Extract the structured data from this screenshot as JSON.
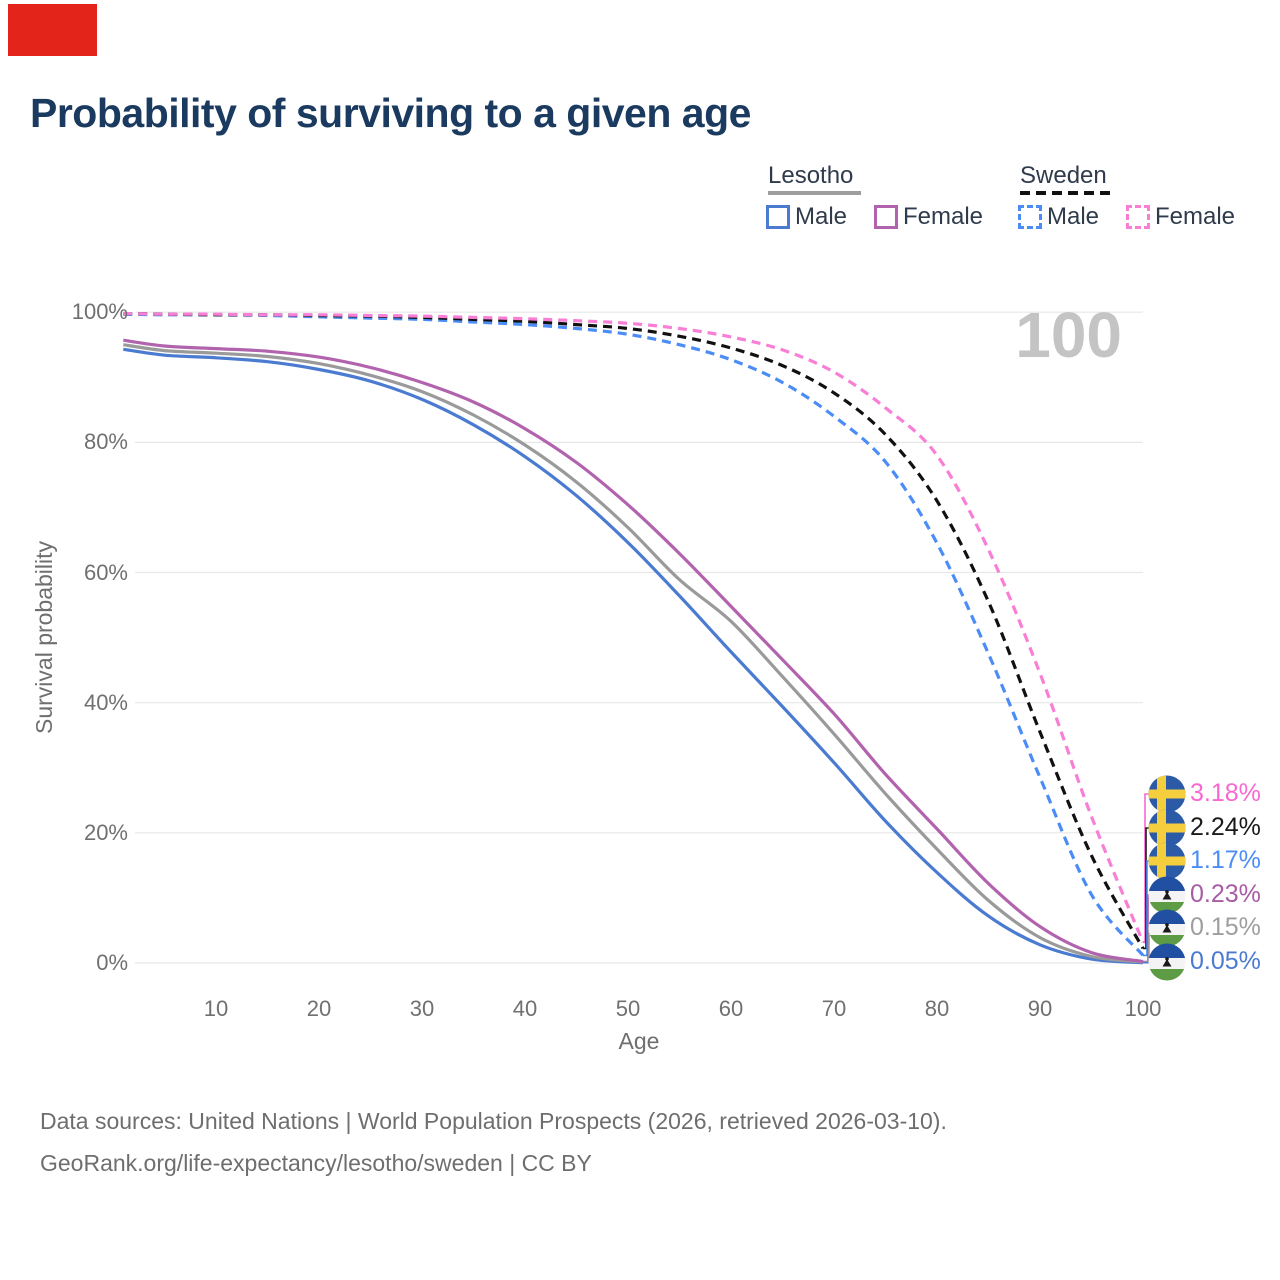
{
  "marker": {
    "color": "#e2241b"
  },
  "title": "Probability of surviving to a given age",
  "legend": {
    "groups": [
      {
        "label": "Lesotho",
        "line_style": "solid",
        "underline_color": "#9e9e9e",
        "items": [
          {
            "label": "Male",
            "color": "#4b7bd1"
          },
          {
            "label": "Female",
            "color": "#b263ae"
          }
        ]
      },
      {
        "label": "Sweden",
        "line_style": "dashed",
        "underline_color": "#111111",
        "items": [
          {
            "label": "Male",
            "color": "#4b8cf7"
          },
          {
            "label": "Female",
            "color": "#f97ed6"
          }
        ]
      }
    ]
  },
  "axes": {
    "y_title": "Survival probability",
    "x_title": "Age",
    "y_tick_labels": [
      "100%",
      "80%",
      "60%",
      "40%",
      "20%",
      "0%"
    ],
    "y_tick_values": [
      100,
      80,
      60,
      40,
      20,
      0
    ],
    "x_tick_labels": [
      "10",
      "20",
      "30",
      "40",
      "50",
      "60",
      "70",
      "80",
      "90",
      "100"
    ],
    "x_tick_values": [
      10,
      20,
      30,
      40,
      50,
      60,
      70,
      80,
      90,
      100
    ]
  },
  "watermark": {
    "text": "100"
  },
  "end_labels": [
    {
      "flag": "sweden",
      "label": "3.18%",
      "value": 3.18,
      "color": "#f868d0"
    },
    {
      "flag": "sweden",
      "label": "2.24%",
      "value": 2.24,
      "color": "#1a1a1a"
    },
    {
      "flag": "sweden",
      "label": "1.17%",
      "value": 1.17,
      "color": "#4b8cf7"
    },
    {
      "flag": "lesotho",
      "label": "0.23%",
      "value": 0.23,
      "color": "#a85ca4"
    },
    {
      "flag": "lesotho",
      "label": "0.15%",
      "value": 0.15,
      "color": "#9e9e9e"
    },
    {
      "flag": "lesotho",
      "label": "0.05%",
      "value": 0.05,
      "color": "#4b7bd1"
    }
  ],
  "footer": {
    "line1": "Data sources: United Nations | World Population Prospects (2026, retrieved 2026-03-10).",
    "line2": "GeoRank.org/life-expectancy/lesotho/sweden | CC BY"
  },
  "chart_data": {
    "type": "line",
    "title": "Probability of surviving to a given age",
    "xlabel": "Age",
    "ylabel": "Survival probability",
    "xlim": [
      0,
      100
    ],
    "ylim": [
      0,
      100
    ],
    "grid": "horizontal",
    "legend_position": "top-right",
    "ages": [
      1,
      5,
      10,
      15,
      20,
      25,
      30,
      35,
      40,
      45,
      50,
      55,
      60,
      65,
      70,
      75,
      80,
      85,
      90,
      95,
      100
    ],
    "series": [
      {
        "name": "Lesotho Male",
        "country": "Lesotho",
        "sex": "Male",
        "line": "solid",
        "color": "#4b7bd1",
        "values": [
          94.3,
          93.4,
          93.0,
          92.4,
          91.2,
          89.4,
          86.6,
          82.7,
          77.8,
          71.8,
          64.6,
          56.4,
          47.8,
          39.4,
          30.8,
          21.8,
          13.9,
          7.2,
          2.8,
          0.6,
          0.05
        ]
      },
      {
        "name": "Lesotho Both sexes",
        "country": "Lesotho",
        "sex": "Both",
        "line": "solid",
        "color": "#9a9a9a",
        "values": [
          95.0,
          94.1,
          93.7,
          93.2,
          92.1,
          90.3,
          87.8,
          84.2,
          79.6,
          73.9,
          66.9,
          58.9,
          52.5,
          44.0,
          35.2,
          26.0,
          17.5,
          9.6,
          3.9,
          1.0,
          0.15
        ]
      },
      {
        "name": "Lesotho Female",
        "country": "Lesotho",
        "sex": "Female",
        "line": "solid",
        "color": "#b263ae",
        "values": [
          95.7,
          94.8,
          94.4,
          94.0,
          93.1,
          91.5,
          89.2,
          86.2,
          82.1,
          76.9,
          70.4,
          62.9,
          54.8,
          46.6,
          38.3,
          29.0,
          20.6,
          12.2,
          5.6,
          1.6,
          0.23
        ]
      },
      {
        "name": "Sweden Male",
        "country": "Sweden",
        "sex": "Male",
        "line": "dashed",
        "color": "#4b8cf7",
        "values": [
          99.7,
          99.6,
          99.6,
          99.5,
          99.3,
          99.1,
          98.9,
          98.5,
          98.1,
          97.5,
          96.6,
          95.0,
          92.7,
          89.2,
          84.0,
          77.0,
          64.5,
          47.5,
          28.5,
          10.5,
          1.17
        ]
      },
      {
        "name": "Sweden Both sexes",
        "country": "Sweden",
        "sex": "Both",
        "line": "dashed",
        "color": "#111111",
        "values": [
          99.8,
          99.7,
          99.6,
          99.6,
          99.5,
          99.4,
          99.2,
          98.9,
          98.6,
          98.1,
          97.5,
          96.3,
          94.5,
          91.8,
          87.6,
          81.2,
          71.0,
          55.5,
          35.5,
          16.5,
          2.24
        ]
      },
      {
        "name": "Sweden Female",
        "country": "Sweden",
        "sex": "Female",
        "line": "dashed",
        "color": "#f97ed6",
        "values": [
          99.8,
          99.7,
          99.7,
          99.6,
          99.6,
          99.5,
          99.4,
          99.2,
          99.0,
          98.7,
          98.3,
          97.5,
          96.2,
          94.2,
          90.8,
          85.3,
          78.0,
          63.5,
          44.5,
          22.5,
          3.18
        ]
      }
    ]
  }
}
